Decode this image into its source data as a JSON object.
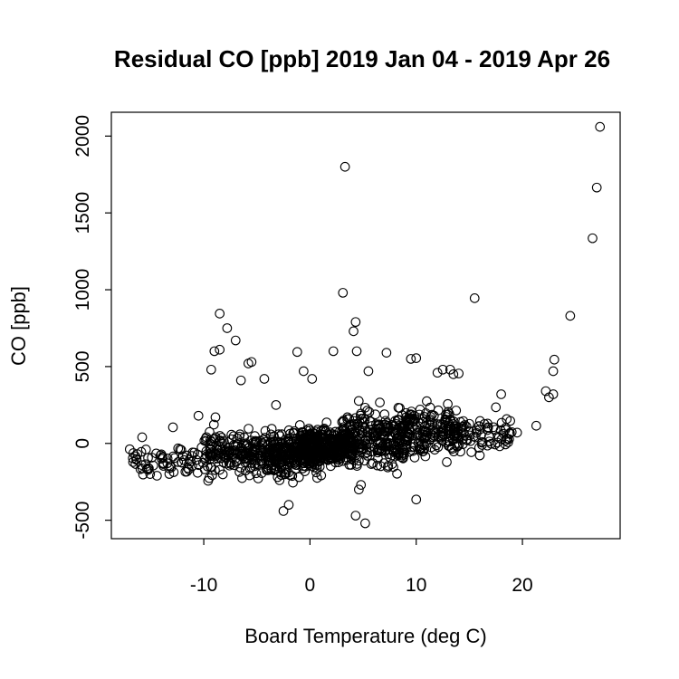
{
  "chart_data": {
    "type": "scatter",
    "title": "Residual CO [ppb] 2019 Jan 04 - 2019 Apr 26",
    "xlabel": "Board Temperature (deg C)",
    "ylabel": "CO [ppb]",
    "xlim": [
      -18.7,
      29.2
    ],
    "ylim": [
      -620,
      2155
    ],
    "xticks": [
      -10,
      0,
      10,
      20
    ],
    "xtick_labels": [
      "-10",
      "0",
      "10",
      "20"
    ],
    "yticks": [
      -500,
      0,
      500,
      1000,
      1500,
      2000
    ],
    "ytick_labels": [
      "-500",
      "0",
      "500",
      "1000",
      "1500",
      "2000"
    ],
    "grid": false,
    "marker": "open-circle",
    "color": "#000000",
    "outliers": [
      [
        27.3,
        2060
      ],
      [
        27.0,
        1665
      ],
      [
        26.6,
        1335
      ],
      [
        3.3,
        1800
      ],
      [
        3.1,
        980
      ],
      [
        15.5,
        945
      ],
      [
        24.5,
        830
      ],
      [
        -8.5,
        845
      ],
      [
        -7.8,
        750
      ],
      [
        4.3,
        790
      ],
      [
        4.1,
        730
      ],
      [
        -7.0,
        670
      ],
      [
        -9.0,
        600
      ],
      [
        -8.5,
        610
      ],
      [
        -1.2,
        595
      ],
      [
        2.2,
        600
      ],
      [
        4.4,
        600
      ],
      [
        -5.5,
        530
      ],
      [
        -5.8,
        520
      ],
      [
        7.2,
        590
      ],
      [
        9.5,
        550
      ],
      [
        10.0,
        555
      ],
      [
        23.0,
        545
      ],
      [
        22.9,
        470
      ],
      [
        -9.3,
        480
      ],
      [
        -6.5,
        410
      ],
      [
        -4.3,
        420
      ],
      [
        12.5,
        480
      ],
      [
        13.2,
        480
      ],
      [
        12.0,
        460
      ],
      [
        13.5,
        450
      ],
      [
        14.0,
        455
      ],
      [
        21.3,
        115
      ],
      [
        22.2,
        340
      ],
      [
        22.5,
        300
      ],
      [
        22.9,
        320
      ],
      [
        -2.5,
        -440
      ],
      [
        -2.0,
        -400
      ],
      [
        4.3,
        -470
      ],
      [
        5.2,
        -520
      ],
      [
        10.0,
        -365
      ],
      [
        4.6,
        -300
      ],
      [
        4.8,
        -270
      ],
      [
        -15.8,
        40
      ],
      [
        -12.9,
        105
      ],
      [
        -10.5,
        180
      ],
      [
        17.5,
        235
      ],
      [
        18.0,
        320
      ],
      [
        19.5,
        70
      ],
      [
        18.4,
        90
      ],
      [
        -8.9,
        170
      ],
      [
        -3.2,
        250
      ],
      [
        -0.6,
        470
      ],
      [
        0.2,
        420
      ],
      [
        5.5,
        470
      ]
    ],
    "bulk_clusters": [
      {
        "x_range": [
          -17,
          -10
        ],
        "y_center": -120,
        "y_spread": 95,
        "count": 70
      },
      {
        "x_range": [
          -10,
          -4
        ],
        "y_center": -60,
        "y_spread": 140,
        "count": 190
      },
      {
        "x_range": [
          -4,
          1
        ],
        "y_center": -60,
        "y_spread": 130,
        "count": 260
      },
      {
        "x_range": [
          -1,
          4
        ],
        "y_center": -20,
        "y_spread": 110,
        "count": 320
      },
      {
        "x_range": [
          3,
          9
        ],
        "y_center": 30,
        "y_spread": 160,
        "count": 230
      },
      {
        "x_range": [
          8,
          14
        ],
        "y_center": 80,
        "y_spread": 150,
        "count": 200
      },
      {
        "x_range": [
          13,
          19
        ],
        "y_center": 60,
        "y_spread": 110,
        "count": 80
      }
    ]
  }
}
